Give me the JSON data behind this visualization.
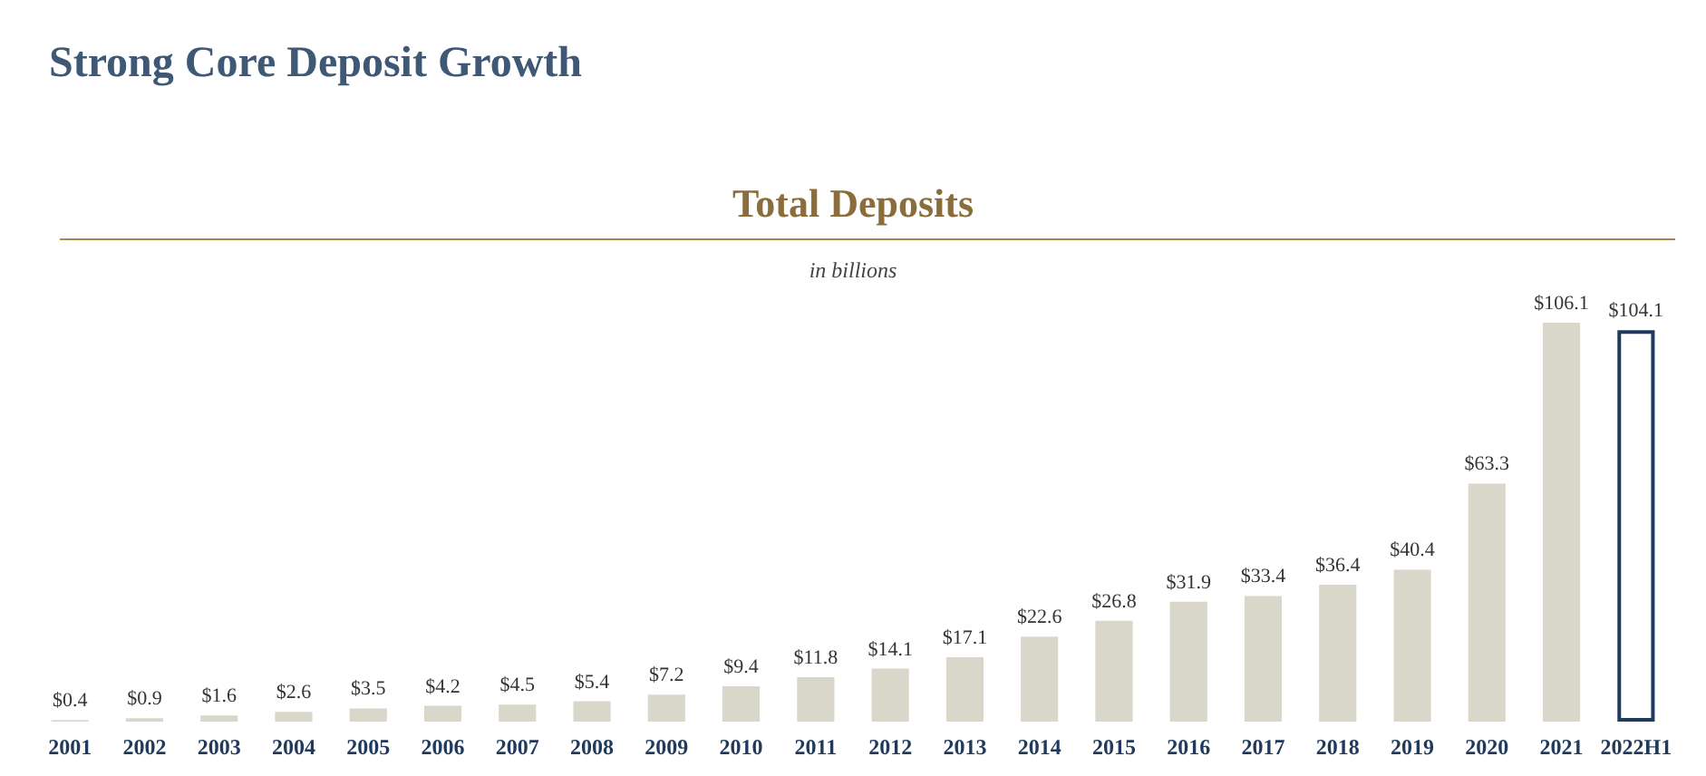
{
  "chart_data": {
    "type": "bar",
    "title": "Total Deposits",
    "subtitle": "in billions",
    "annotations": [
      "Strong Core Deposit Growth"
    ],
    "categories": [
      "2001",
      "2002",
      "2003",
      "2004",
      "2005",
      "2006",
      "2007",
      "2008",
      "2009",
      "2010",
      "2011",
      "2012",
      "2013",
      "2014",
      "2015",
      "2016",
      "2017",
      "2018",
      "2019",
      "2020",
      "2021",
      "2022H1"
    ],
    "values": [
      0.4,
      0.9,
      1.6,
      2.6,
      3.5,
      4.2,
      4.5,
      5.4,
      7.2,
      9.4,
      11.8,
      14.1,
      17.1,
      22.6,
      26.8,
      31.9,
      33.4,
      36.4,
      40.4,
      63.3,
      106.1,
      104.1
    ],
    "value_labels": [
      "$0.4",
      "$0.9",
      "$1.6",
      "$2.6",
      "$3.5",
      "$4.2",
      "$4.5",
      "$5.4",
      "$7.2",
      "$9.4",
      "$11.8",
      "$14.1",
      "$17.1",
      "$22.6",
      "$26.8",
      "$31.9",
      "$33.4",
      "$36.4",
      "$40.4",
      "$63.3",
      "$106.1",
      "$104.1"
    ],
    "colors": [
      "#d9d6ca",
      "#d9d6ca",
      "#d9d6ca",
      "#d9d6ca",
      "#d9d6ca",
      "#d9d6ca",
      "#d9d6ca",
      "#d9d6ca",
      "#d9d6ca",
      "#d9d6ca",
      "#d9d6ca",
      "#d9d6ca",
      "#d9d6ca",
      "#d9d6ca",
      "#d9d6ca",
      "#d9d6ca",
      "#d9d6ca",
      "#d9d6ca",
      "#d9d6ca",
      "#d9d6ca",
      "#d9d6ca",
      "#ffffff"
    ]
  }
}
